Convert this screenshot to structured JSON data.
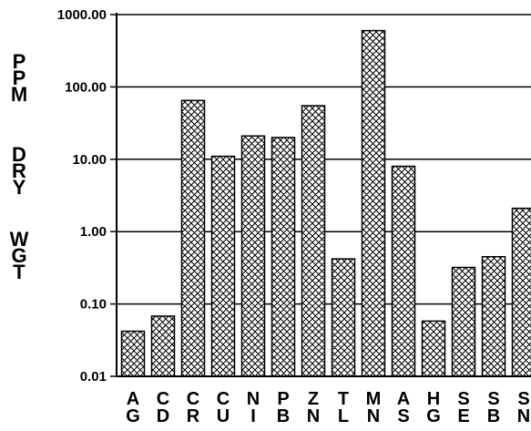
{
  "chart_data": {
    "type": "bar",
    "title": "",
    "ylabel": "PPM DRY WGT",
    "ylabel_words": [
      "PPM",
      "DRY",
      "WGT"
    ],
    "yscale": "log",
    "ylim": [
      0.01,
      1000
    ],
    "yticks": [
      {
        "value": 0.01,
        "label": "0.01"
      },
      {
        "value": 0.1,
        "label": "0.10"
      },
      {
        "value": 1,
        "label": "1.00"
      },
      {
        "value": 10,
        "label": "10.00"
      },
      {
        "value": 100,
        "label": "100.00"
      },
      {
        "value": 1000,
        "label": "1000.00"
      }
    ],
    "grid": true,
    "categories": [
      "AG",
      "CD",
      "CR",
      "CU",
      "NI",
      "PB",
      "ZN",
      "TL",
      "MN",
      "AS",
      "HG",
      "SE",
      "SB",
      "SN"
    ],
    "values": [
      0.042,
      0.068,
      65,
      11,
      21,
      20,
      55,
      0.42,
      600,
      8,
      0.058,
      0.32,
      0.45,
      2.1
    ]
  }
}
